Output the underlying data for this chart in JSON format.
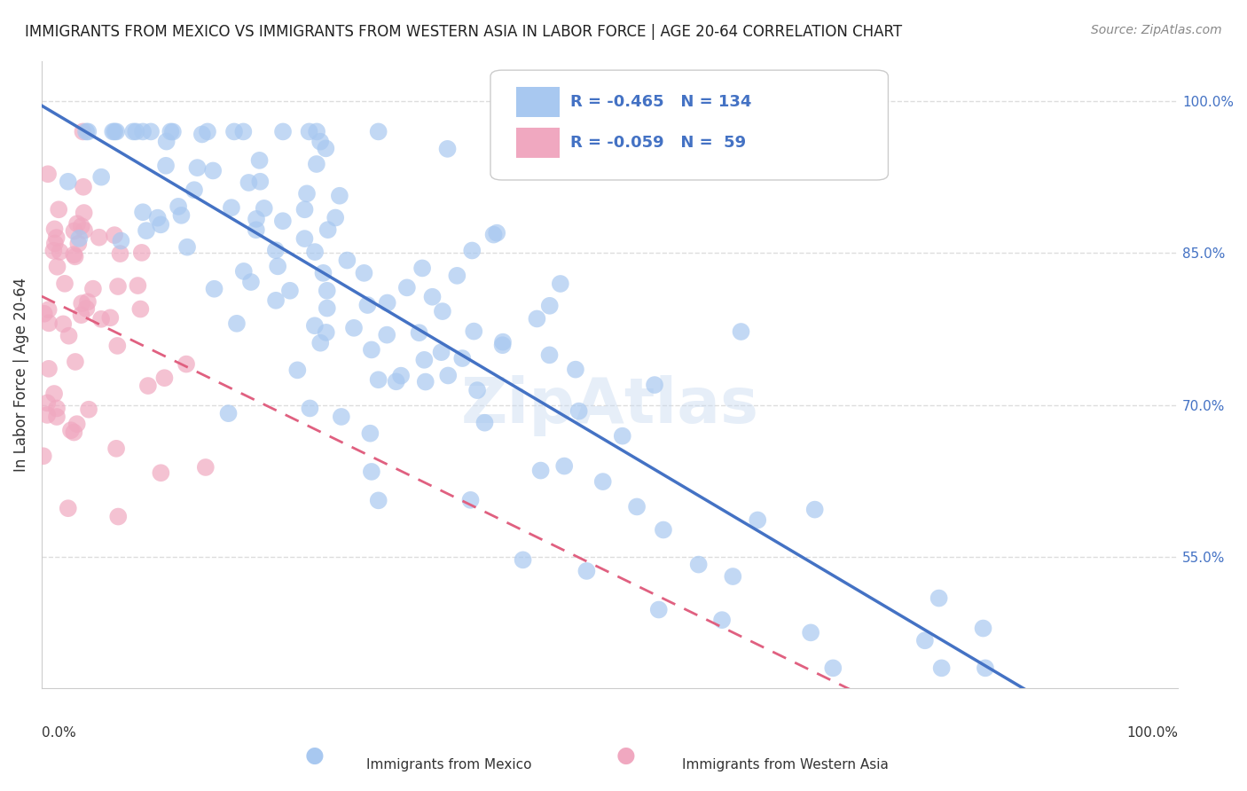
{
  "title": "IMMIGRANTS FROM MEXICO VS IMMIGRANTS FROM WESTERN ASIA IN LABOR FORCE | AGE 20-64 CORRELATION CHART",
  "source": "Source: ZipAtlas.com",
  "ylabel": "In Labor Force | Age 20-64",
  "xlim": [
    0.0,
    1.0
  ],
  "ylim": [
    0.42,
    1.04
  ],
  "legend_r_mexico": "-0.465",
  "legend_n_mexico": "134",
  "legend_r_western": "-0.059",
  "legend_n_western": "59",
  "color_mexico": "#a8c8f0",
  "color_western": "#f0a8c0",
  "line_color_mexico": "#4472c4",
  "line_color_western": "#e06080",
  "background_color": "#ffffff",
  "grid_color": "#dddddd",
  "right_yticks": [
    1.0,
    0.85,
    0.7,
    0.55
  ],
  "right_yticklabels": [
    "100.0%",
    "85.0%",
    "70.0%",
    "55.0%"
  ]
}
